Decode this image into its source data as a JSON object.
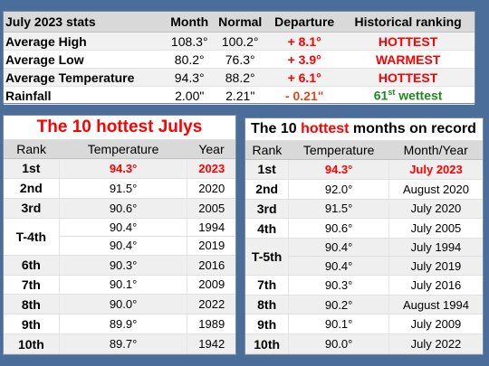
{
  "stats": {
    "headers": [
      "July 2023 stats",
      "Month",
      "Normal",
      "Departure",
      "Historical ranking"
    ],
    "rows": [
      {
        "label": "Average High",
        "month": "108.3°",
        "normal": "100.2°",
        "departure": "+ 8.1°",
        "ranking": "HOTTEST"
      },
      {
        "label": "Average Low",
        "month": "80.2°",
        "normal": "76.3°",
        "departure": "+ 3.9°",
        "ranking": "WARMEST"
      },
      {
        "label": "Average Temperature",
        "month": "94.3°",
        "normal": "88.2°",
        "departure": "+ 6.1°",
        "ranking": "HOTTEST"
      },
      {
        "label": "Rainfall",
        "month": "2.00\"",
        "normal": "2.21\"",
        "departure": "- 0.21\"",
        "ranking_num": "61",
        "ranking_sup": "st",
        "ranking_rest": " wettest"
      }
    ]
  },
  "hot_julys": {
    "title": "The 10 hottest Julys",
    "headers": [
      "Rank",
      "Temperature",
      "Year"
    ],
    "rows": [
      {
        "rank": "1st",
        "temp": "94.3°",
        "year": "2023"
      },
      {
        "rank": "2nd",
        "temp": "91.5°",
        "year": "2020"
      },
      {
        "rank": "3rd",
        "temp": "90.6°",
        "year": "2005"
      },
      {
        "rank": "T-4th",
        "temp": "90.4°",
        "year": "1994"
      },
      {
        "rank": "",
        "temp": "90.4°",
        "year": "2019"
      },
      {
        "rank": "6th",
        "temp": "90.3°",
        "year": "2016"
      },
      {
        "rank": "7th",
        "temp": "90.1°",
        "year": "2009"
      },
      {
        "rank": "8th",
        "temp": "90.0°",
        "year": "2022"
      },
      {
        "rank": "9th",
        "temp": "89.9°",
        "year": "1989"
      },
      {
        "rank": "10th",
        "temp": "89.7°",
        "year": "1942"
      }
    ]
  },
  "hot_months": {
    "title_pre": "The 10 ",
    "title_highlight": "hottest",
    "title_post": " months on record",
    "headers": [
      "Rank",
      "Temperature",
      "Month/Year"
    ],
    "rows": [
      {
        "rank": "1st",
        "temp": "94.3°",
        "when": "July 2023"
      },
      {
        "rank": "2nd",
        "temp": "92.0°",
        "when": "August 2020"
      },
      {
        "rank": "3rd",
        "temp": "91.5°",
        "when": "July 2020"
      },
      {
        "rank": "4th",
        "temp": "90.6°",
        "when": "July 2005"
      },
      {
        "rank": "T-5th",
        "temp": "90.4°",
        "when": "July 1994"
      },
      {
        "rank": "",
        "temp": "90.4°",
        "when": "July 2019"
      },
      {
        "rank": "7th",
        "temp": "90.3°",
        "when": "July 2016"
      },
      {
        "rank": "8th",
        "temp": "90.2°",
        "when": "August 1994"
      },
      {
        "rank": "9th",
        "temp": "90.1°",
        "when": "July 2009"
      },
      {
        "rank": "10th",
        "temp": "90.0°",
        "when": "July 2022"
      }
    ]
  }
}
